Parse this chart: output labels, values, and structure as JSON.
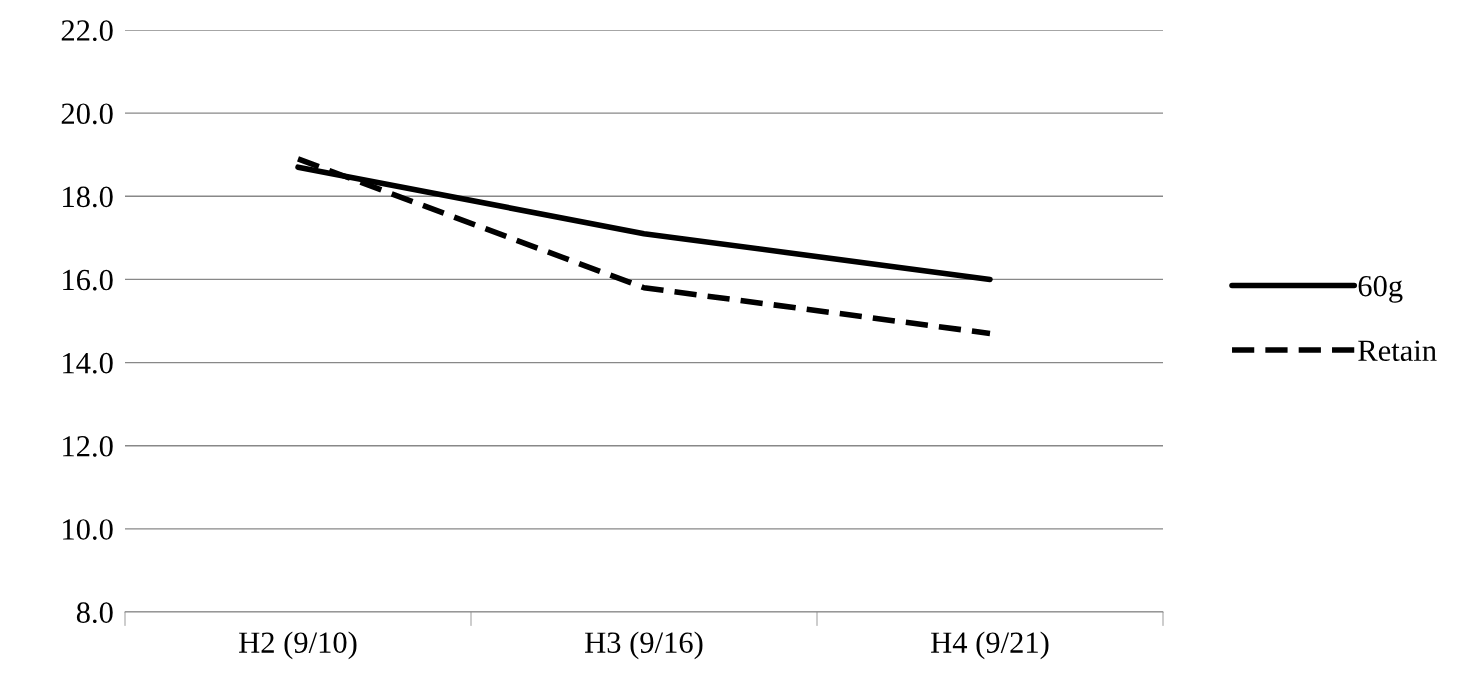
{
  "chart_data": {
    "type": "line",
    "categories": [
      "H2 (9/10)",
      "H3 (9/16)",
      "H4 (9/21)"
    ],
    "series": [
      {
        "name": "60g",
        "color": "#000000",
        "values": [
          18.7,
          17.1,
          16.0
        ],
        "line_style": "solid"
      },
      {
        "name": "Retain",
        "color": "#000000",
        "values": [
          18.9,
          15.8,
          14.7
        ],
        "line_style": "dashed"
      }
    ],
    "ylim": [
      8.0,
      22.0
    ],
    "yticks": [
      {
        "value": 8,
        "label": "8.0"
      },
      {
        "value": 10,
        "label": "10.0"
      },
      {
        "value": 12,
        "label": "12.0"
      },
      {
        "value": 14,
        "label": "14.0"
      },
      {
        "value": 16,
        "label": "16.0"
      },
      {
        "value": 18,
        "label": "18.0"
      },
      {
        "value": 20,
        "label": "20.0"
      },
      {
        "value": 22,
        "label": "22.0"
      }
    ],
    "grid": "y",
    "legend": "right",
    "marker": "none"
  }
}
